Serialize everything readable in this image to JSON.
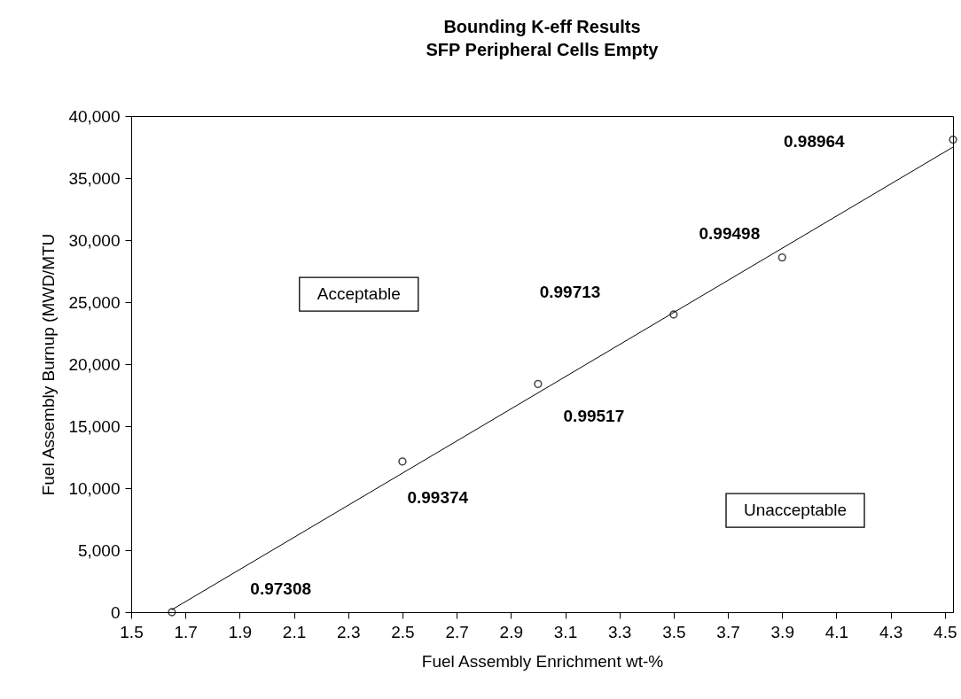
{
  "chart_data": {
    "type": "scatter",
    "title": "Bounding K-eff Results",
    "subtitle": "SFP Peripheral Cells Empty",
    "xlabel": "Fuel Assembly Enrichment wt-%",
    "ylabel": "Fuel Assembly Burnup (MWD/MTU",
    "x": [
      1.65,
      2.5,
      3.0,
      3.5,
      3.9,
      4.53
    ],
    "series": [
      {
        "color": "#000000",
        "marker": "circle",
        "values": [
          0,
          12150,
          18400,
          24000,
          28600,
          38100
        ]
      },
      {
        "type": "line",
        "color": "#000000",
        "x": [
          1.65,
          4.53
        ],
        "values": [
          200,
          37500
        ]
      }
    ],
    "annotations": [
      "0.97308",
      "0.99374",
      "0.99517",
      "0.99713",
      "0.99498",
      "0.98964",
      "Acceptable",
      "Unacceptable"
    ],
    "xlim": [
      1.5,
      4.53
    ],
    "xticks": [
      1.5,
      1.7,
      1.9,
      2.1,
      2.3,
      2.5,
      2.7,
      2.9,
      3.1,
      3.3,
      3.5,
      3.7,
      3.9,
      4.1,
      4.3,
      4.5
    ],
    "ylim": [
      0,
      40000
    ],
    "yticks": [
      0,
      {
        "value": 5000,
        "label": "5,000"
      },
      {
        "value": 10000,
        "label": "10,000"
      },
      {
        "value": 15000,
        "label": "15,000"
      },
      {
        "value": 20000,
        "label": "20,000"
      },
      {
        "value": 25000,
        "label": "25,000"
      },
      {
        "value": 30000,
        "label": "30,000"
      },
      {
        "value": 35000,
        "label": "35,000"
      },
      {
        "value": 40000,
        "label": "40,000"
      }
    ],
    "grid": false
  }
}
